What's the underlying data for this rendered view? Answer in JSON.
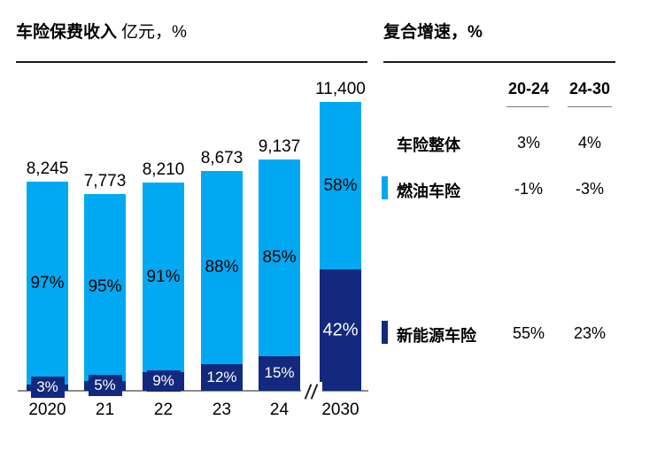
{
  "left_panel": {
    "title_bold": "车险保费收入",
    "title_unit": "亿元，%"
  },
  "right_panel": {
    "title": "复合增速，%",
    "col_headers": [
      "20-24",
      "24-30"
    ],
    "rows": [
      {
        "label": "车险整体",
        "marker": "none",
        "v1": "3%",
        "v2": "4%"
      },
      {
        "label": "燃油车险",
        "marker": "cyan",
        "v1": "-1%",
        "v2": "-3%"
      },
      {
        "label": "新能源车险",
        "marker": "navy",
        "v1": "55%",
        "v2": "23%"
      }
    ]
  },
  "chart_data": {
    "type": "bar",
    "stacked": true,
    "title": "车险保费收入 亿元，%",
    "categories": [
      "2020",
      "21",
      "22",
      "23",
      "24",
      "2030"
    ],
    "totals": [
      8245,
      7773,
      8210,
      8673,
      9137,
      11400
    ],
    "total_labels": [
      "8,245",
      "7,773",
      "8,210",
      "8,673",
      "9,137",
      "11,400"
    ],
    "series": [
      {
        "name": "新能源车险",
        "color_key": "navy",
        "pct": [
          3,
          5,
          9,
          12,
          15,
          42
        ]
      },
      {
        "name": "燃油车险",
        "color_key": "cyan",
        "pct": [
          97,
          95,
          91,
          88,
          85,
          58
        ]
      }
    ],
    "axis_break_between": [
      "24",
      "2030"
    ],
    "ylim": [
      0,
      11400
    ],
    "legend_position": "right-table",
    "grid": false
  },
  "colors": {
    "cyan": "#00a9f1",
    "navy": "#13297d",
    "axis": "#8c8c8c",
    "rule": "#1a1a1a"
  }
}
